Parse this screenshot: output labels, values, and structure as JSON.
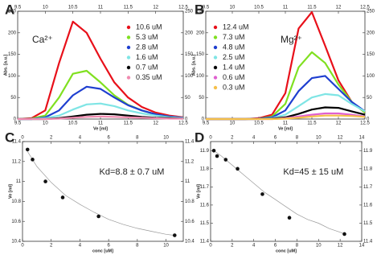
{
  "chart_data": [
    {
      "type": "line",
      "panel": "A",
      "ion": "Ca²⁺",
      "x_label": "Ve [ml]",
      "y_label": "Abs. [a.u.]",
      "x": [
        9.5,
        9.75,
        10,
        10.25,
        10.5,
        10.75,
        11,
        11.25,
        11.5,
        11.75,
        12,
        12.25,
        12.5
      ],
      "xlim": [
        9.5,
        12.5
      ],
      "xticks": [
        9.5,
        10,
        10.5,
        11,
        11.5,
        12,
        12.5
      ],
      "ylim": [
        0,
        250
      ],
      "yticks": [
        0,
        50,
        100,
        150,
        200,
        250
      ],
      "legend": "upper right",
      "series": [
        {
          "name": "10.6 uM",
          "color": "#e8101a",
          "values": [
            0,
            2,
            20,
            130,
            226,
            200,
            140,
            85,
            50,
            28,
            15,
            8,
            4
          ]
        },
        {
          "name": "5.3 uM",
          "color": "#80e020",
          "values": [
            0,
            1,
            8,
            50,
            105,
            112,
            85,
            55,
            33,
            20,
            11,
            6,
            3
          ]
        },
        {
          "name": "2.8 uM",
          "color": "#1f3fd0",
          "values": [
            0,
            0,
            4,
            20,
            55,
            75,
            70,
            50,
            32,
            20,
            11,
            6,
            3
          ]
        },
        {
          "name": "1.6 uM",
          "color": "#7fe5e5",
          "values": [
            0,
            0,
            2,
            8,
            22,
            34,
            36,
            30,
            20,
            13,
            8,
            4,
            2
          ]
        },
        {
          "name": "0.7 uM",
          "color": "#000000",
          "values": [
            0,
            0,
            0,
            2,
            6,
            10,
            12,
            11,
            8,
            5,
            3,
            2,
            1
          ]
        },
        {
          "name": "0.35 uM",
          "color": "#f08ab0",
          "values": [
            0,
            0,
            0,
            1,
            3,
            5,
            6,
            5,
            4,
            3,
            2,
            1,
            1
          ]
        }
      ]
    },
    {
      "type": "line",
      "panel": "B",
      "ion": "Mg²⁺",
      "x_label": "Ve [ml]",
      "y_label": "Abs. [a.u.]",
      "x": [
        9.5,
        9.75,
        10,
        10.25,
        10.5,
        10.75,
        11,
        11.25,
        11.5,
        11.75,
        12,
        12.25,
        12.5
      ],
      "xlim": [
        9.5,
        12.5
      ],
      "xticks": [
        9.5,
        10,
        10.5,
        11,
        11.5,
        12,
        12.5
      ],
      "ylim": [
        0,
        250
      ],
      "yticks": [
        0,
        50,
        100,
        150,
        200,
        250
      ],
      "legend": "upper left",
      "series": [
        {
          "name": "12.4 uM",
          "color": "#e8101a",
          "values": [
            0,
            0,
            0,
            0,
            2,
            10,
            60,
            210,
            248,
            170,
            90,
            40,
            15
          ]
        },
        {
          "name": "7.3 uM",
          "color": "#80e020",
          "values": [
            0,
            0,
            0,
            0,
            1,
            6,
            35,
            120,
            155,
            130,
            80,
            40,
            15
          ]
        },
        {
          "name": "4.8 uM",
          "color": "#1f3fd0",
          "values": [
            0,
            0,
            0,
            0,
            1,
            4,
            20,
            65,
            95,
            100,
            70,
            40,
            18
          ]
        },
        {
          "name": "2.5 uM",
          "color": "#7fe5e5",
          "values": [
            0,
            0,
            0,
            0,
            0,
            2,
            10,
            30,
            50,
            58,
            55,
            35,
            18
          ]
        },
        {
          "name": "1.4 uM",
          "color": "#000000",
          "values": [
            0,
            0,
            0,
            0,
            0,
            1,
            4,
            12,
            22,
            27,
            26,
            18,
            10
          ]
        },
        {
          "name": "0.6 uM",
          "color": "#e060d0",
          "values": [
            0,
            0,
            0,
            0,
            0,
            0,
            2,
            6,
            10,
            13,
            13,
            10,
            6
          ]
        },
        {
          "name": "0.3 uM",
          "color": "#f5c04a",
          "values": [
            0,
            0,
            0,
            0,
            0,
            0,
            1,
            3,
            6,
            8,
            8,
            7,
            5
          ]
        }
      ]
    },
    {
      "type": "scatter",
      "panel": "C",
      "annotation": "Kd=8.8 ± 0.7 uM",
      "x_label": "conc [uM]",
      "y_label": "Ve [ml]",
      "x": [
        0.35,
        0.7,
        1.6,
        2.8,
        5.3,
        10.6
      ],
      "values": [
        11.32,
        11.22,
        11.0,
        10.84,
        10.65,
        10.46
      ],
      "fit": {
        "x": [
          0.35,
          1,
          2,
          3,
          4,
          5,
          6,
          7,
          8,
          9,
          10,
          10.6
        ],
        "values": [
          11.3,
          11.15,
          10.99,
          10.86,
          10.77,
          10.69,
          10.62,
          10.57,
          10.53,
          10.5,
          10.47,
          10.46
        ]
      },
      "xlim": [
        0,
        11.2
      ],
      "xticks": [
        0,
        2,
        4,
        6,
        8,
        10
      ],
      "ylim": [
        10.4,
        11.4
      ],
      "yticks": [
        10.4,
        10.6,
        10.8,
        11,
        11.2,
        11.4
      ]
    },
    {
      "type": "scatter",
      "panel": "D",
      "annotation": "Kd=45 ± 15 uM",
      "x_label": "conc [uM]",
      "y_label": "Ve [ml]",
      "x": [
        0.3,
        0.6,
        1.4,
        2.5,
        4.8,
        7.3,
        12.4
      ],
      "values": [
        11.9,
        11.87,
        11.85,
        11.8,
        11.66,
        11.53,
        11.44
      ],
      "fit": {
        "x": [
          0.3,
          1,
          2,
          3,
          4,
          5,
          6,
          7,
          8,
          9,
          10,
          11,
          12,
          12.4
        ],
        "values": [
          11.9,
          11.87,
          11.82,
          11.77,
          11.72,
          11.67,
          11.63,
          11.59,
          11.55,
          11.52,
          11.5,
          11.47,
          11.45,
          11.44
        ]
      },
      "xlim": [
        0,
        14
      ],
      "xticks": [
        0,
        2,
        4,
        6,
        8,
        10,
        12,
        14
      ],
      "ylim": [
        11.4,
        11.95
      ],
      "yticks": [
        11.4,
        11.5,
        11.6,
        11.7,
        11.8,
        11.9
      ]
    }
  ]
}
